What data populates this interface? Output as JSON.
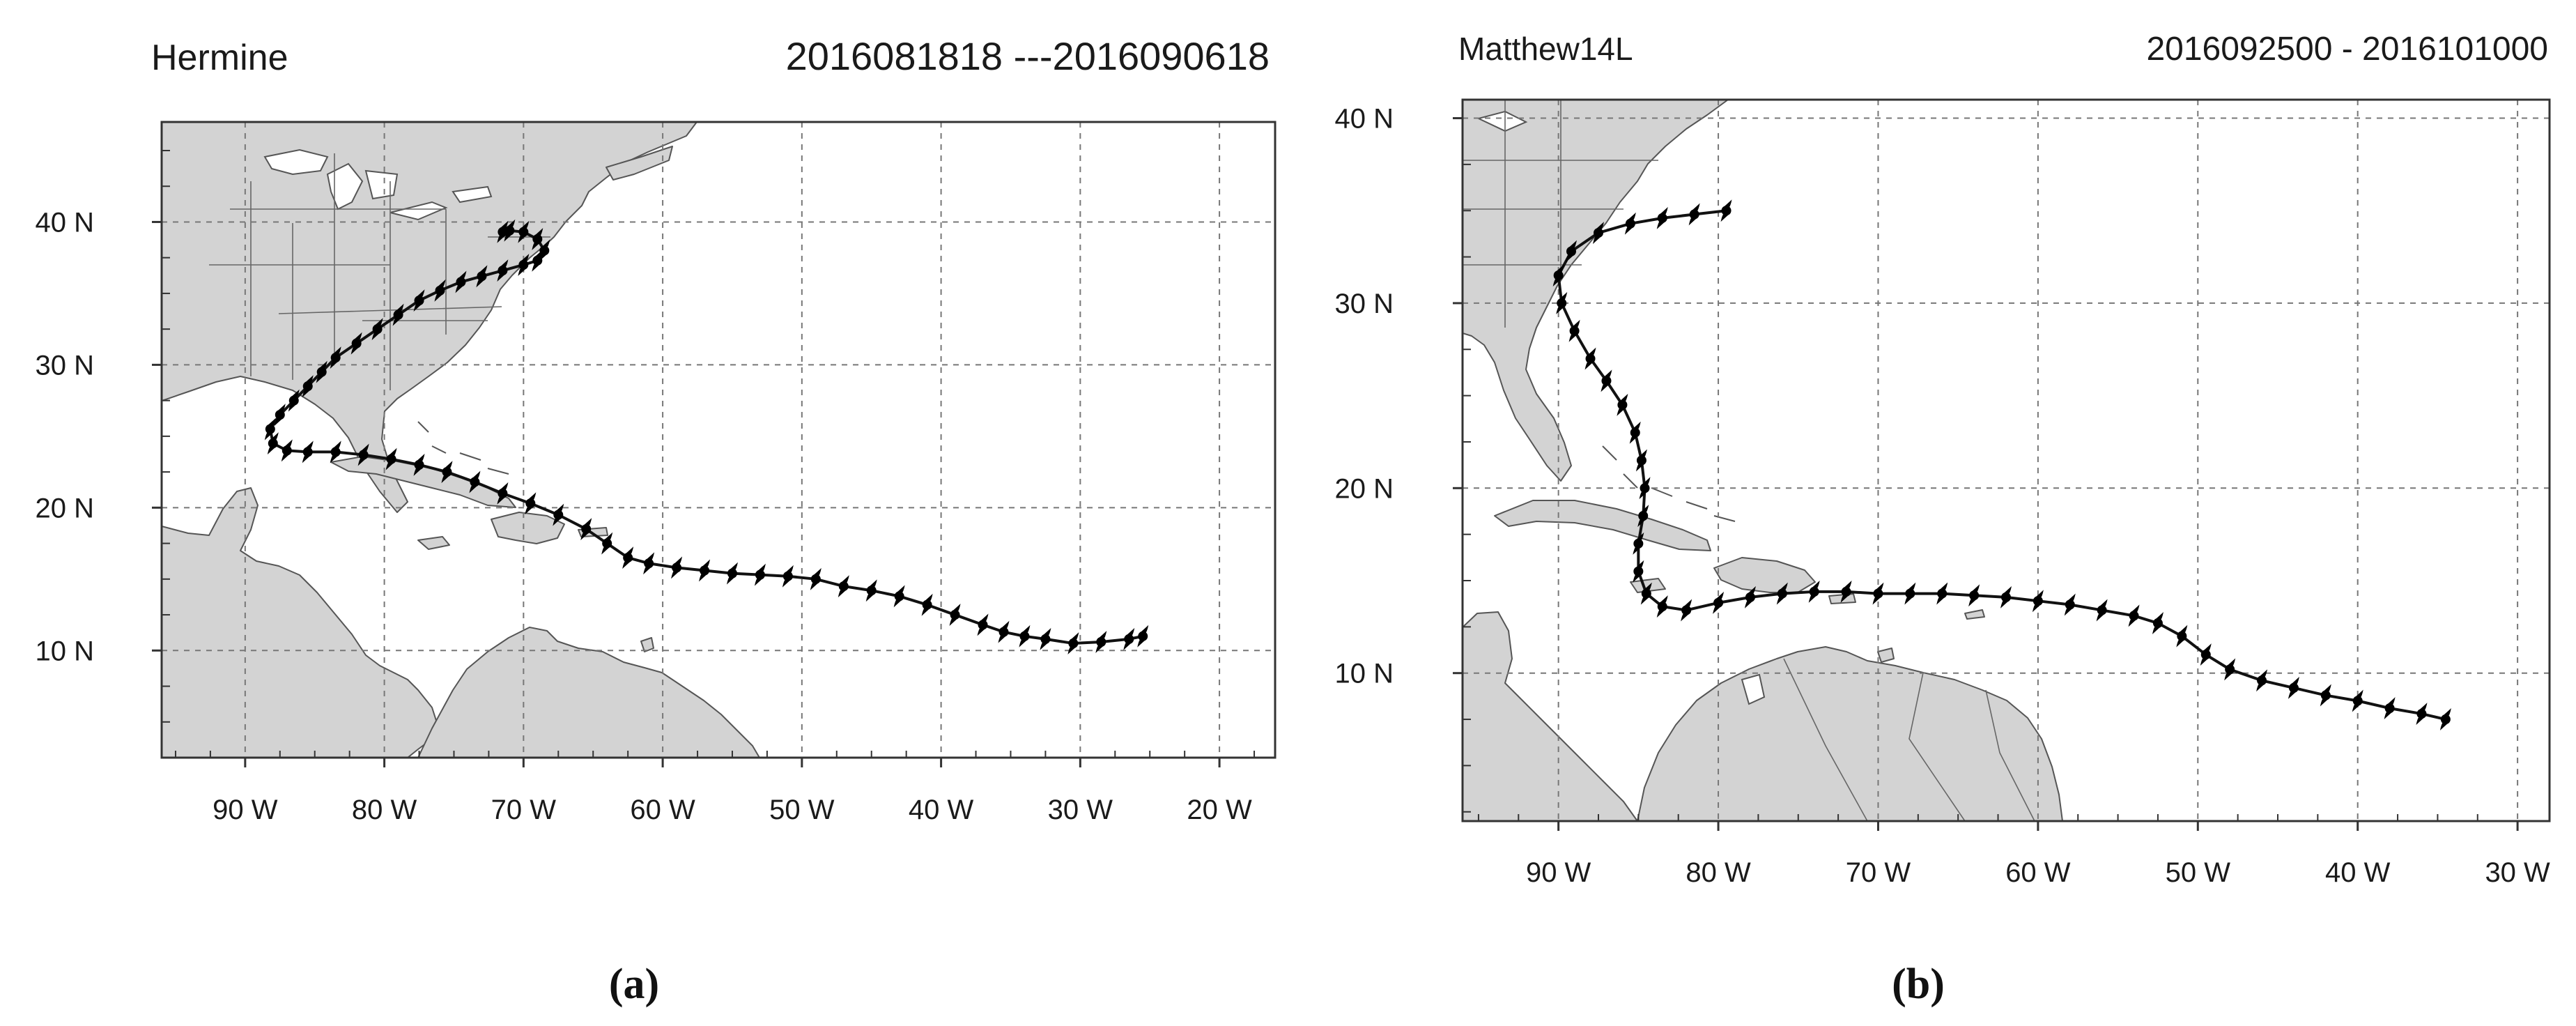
{
  "figure": {
    "panels": [
      {
        "storm_name": "Hermine",
        "date_range": "2016081818 ---2016090618",
        "caption": "(a)",
        "lon_range": [
          -96,
          -16
        ],
        "lat_range": [
          2.5,
          47
        ],
        "x_ticks": [
          {
            "lon": -90,
            "label": "90 W"
          },
          {
            "lon": -80,
            "label": "80 W"
          },
          {
            "lon": -70,
            "label": "70 W"
          },
          {
            "lon": -60,
            "label": "60 W"
          },
          {
            "lon": -50,
            "label": "50 W"
          },
          {
            "lon": -40,
            "label": "40 W"
          },
          {
            "lon": -30,
            "label": "30 W"
          },
          {
            "lon": -20,
            "label": "20 W"
          }
        ],
        "y_ticks": [
          {
            "lat": 10,
            "label": "10 N"
          },
          {
            "lat": 20,
            "label": "20 N"
          },
          {
            "lat": 30,
            "label": "30 N"
          },
          {
            "lat": 40,
            "label": "40 N"
          }
        ],
        "track": [
          [
            -25.5,
            11
          ],
          [
            -26.5,
            10.8
          ],
          [
            -28.5,
            10.6
          ],
          [
            -30.5,
            10.5
          ],
          [
            -32.5,
            10.8
          ],
          [
            -34,
            11
          ],
          [
            -35.5,
            11.3
          ],
          [
            -37,
            11.8
          ],
          [
            -39,
            12.5
          ],
          [
            -41,
            13.2
          ],
          [
            -43,
            13.8
          ],
          [
            -45,
            14.2
          ],
          [
            -47,
            14.5
          ],
          [
            -49,
            15
          ],
          [
            -51,
            15.2
          ],
          [
            -53,
            15.3
          ],
          [
            -55,
            15.4
          ],
          [
            -57,
            15.6
          ],
          [
            -59,
            15.8
          ],
          [
            -61,
            16.1
          ],
          [
            -62.5,
            16.5
          ],
          [
            -64,
            17.5
          ],
          [
            -65.5,
            18.5
          ],
          [
            -67.5,
            19.5
          ],
          [
            -69.5,
            20.3
          ],
          [
            -71.5,
            21
          ],
          [
            -73.5,
            21.8
          ],
          [
            -75.5,
            22.5
          ],
          [
            -77.5,
            23
          ],
          [
            -79.5,
            23.4
          ],
          [
            -81.5,
            23.7
          ],
          [
            -83.5,
            23.9
          ],
          [
            -85.5,
            23.9
          ],
          [
            -87,
            24
          ],
          [
            -88,
            24.5
          ],
          [
            -88.2,
            25.5
          ],
          [
            -87.5,
            26.5
          ],
          [
            -86.5,
            27.5
          ],
          [
            -85.5,
            28.5
          ],
          [
            -84.5,
            29.5
          ],
          [
            -83.5,
            30.5
          ],
          [
            -82,
            31.5
          ],
          [
            -80.5,
            32.5
          ],
          [
            -79,
            33.5
          ],
          [
            -77.5,
            34.5
          ],
          [
            -76,
            35.2
          ],
          [
            -74.5,
            35.8
          ],
          [
            -73,
            36.2
          ],
          [
            -71.5,
            36.6
          ],
          [
            -70,
            37
          ],
          [
            -69,
            37.3
          ],
          [
            -68.5,
            38
          ],
          [
            -69,
            38.8
          ],
          [
            -70,
            39.3
          ],
          [
            -71,
            39.4
          ],
          [
            -71.5,
            39.3
          ]
        ]
      },
      {
        "storm_name": "Matthew14L",
        "date_range": "2016092500 - 2016101000",
        "caption": "(b)",
        "lon_range": [
          -96,
          -28
        ],
        "lat_range": [
          2,
          41
        ],
        "x_ticks": [
          {
            "lon": -90,
            "label": "90 W"
          },
          {
            "lon": -80,
            "label": "80 W"
          },
          {
            "lon": -70,
            "label": "70 W"
          },
          {
            "lon": -60,
            "label": "60 W"
          },
          {
            "lon": -50,
            "label": "50 W"
          },
          {
            "lon": -40,
            "label": "40 W"
          },
          {
            "lon": -30,
            "label": "30 W"
          }
        ],
        "y_ticks": [
          {
            "lat": 10,
            "label": "10 N"
          },
          {
            "lat": 20,
            "label": "20 N"
          },
          {
            "lat": 30,
            "label": "30 N"
          },
          {
            "lat": 40,
            "label": "40 N"
          }
        ],
        "track": [
          [
            -34.5,
            7.5
          ],
          [
            -36,
            7.8
          ],
          [
            -38,
            8.1
          ],
          [
            -40,
            8.5
          ],
          [
            -42,
            8.8
          ],
          [
            -44,
            9.2
          ],
          [
            -46,
            9.6
          ],
          [
            -48,
            10.2
          ],
          [
            -49.5,
            11
          ],
          [
            -51,
            12
          ],
          [
            -52.5,
            12.7
          ],
          [
            -54,
            13.1
          ],
          [
            -56,
            13.4
          ],
          [
            -58,
            13.7
          ],
          [
            -60,
            13.9
          ],
          [
            -62,
            14.1
          ],
          [
            -64,
            14.2
          ],
          [
            -66,
            14.3
          ],
          [
            -68,
            14.3
          ],
          [
            -70,
            14.3
          ],
          [
            -72,
            14.4
          ],
          [
            -74,
            14.4
          ],
          [
            -76,
            14.3
          ],
          [
            -78,
            14.1
          ],
          [
            -80,
            13.8
          ],
          [
            -82,
            13.4
          ],
          [
            -83.5,
            13.6
          ],
          [
            -84.5,
            14.3
          ],
          [
            -85,
            15.5
          ],
          [
            -85,
            17
          ],
          [
            -84.7,
            18.5
          ],
          [
            -84.6,
            20
          ],
          [
            -84.8,
            21.5
          ],
          [
            -85.2,
            23
          ],
          [
            -86,
            24.5
          ],
          [
            -87,
            25.8
          ],
          [
            -88,
            27
          ],
          [
            -89,
            28.5
          ],
          [
            -89.8,
            30
          ],
          [
            -90,
            31.5
          ],
          [
            -89.2,
            32.8
          ],
          [
            -87.5,
            33.8
          ],
          [
            -85.5,
            34.3
          ],
          [
            -83.5,
            34.6
          ],
          [
            -81.5,
            34.8
          ],
          [
            -79.5,
            35
          ]
        ]
      }
    ]
  }
}
